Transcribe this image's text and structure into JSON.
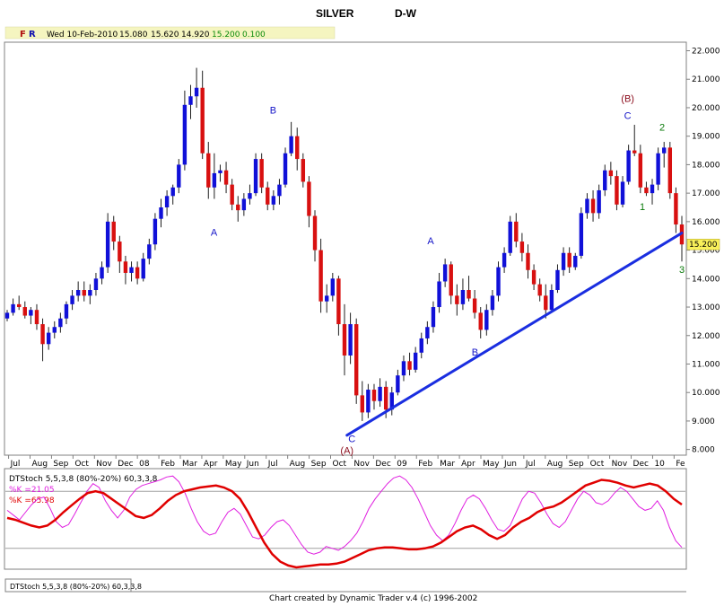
{
  "title": "SILVER",
  "timeframe": "D-W",
  "info_bar": {
    "fr": [
      "F",
      "R"
    ],
    "date": "Wed 10-Feb-2010",
    "open": "15.080",
    "high": "15.620",
    "low": "14.920",
    "close": "15.200",
    "change": "0.100"
  },
  "price_label": "15.200",
  "footer": "Chart created by Dynamic Trader v.4 (c) 1996-2002",
  "bottom_tab": "DTStoch 5,5,3,8 (80%-20%) 60,3,3,8",
  "colors": {
    "up": "#1010d8",
    "down": "#d81010",
    "trend": "#1a2ee0",
    "fast_k": "#e020e0",
    "slow_k": "#e00000"
  },
  "chart_data": [
    {
      "type": "candlestick",
      "title": "SILVER",
      "subtitle": "D-W",
      "x_ticks": [
        "Jul",
        "Aug",
        "Sep",
        "Oct",
        "Nov",
        "Dec",
        "08",
        "Feb",
        "Mar",
        "Apr",
        "May",
        "Jun",
        "Jul",
        "Aug",
        "Sep",
        "Oct",
        "Nov",
        "Dec",
        "09",
        "Feb",
        "Mar",
        "Apr",
        "May",
        "Jun",
        "Jul",
        "Aug",
        "Sep",
        "Oct",
        "Nov",
        "Dec",
        "10",
        "Fe"
      ],
      "y_ticks": [
        "8.000",
        "9.000",
        "10.000",
        "11.000",
        "12.000",
        "13.000",
        "14.000",
        "15.000",
        "16.000",
        "17.000",
        "18.000",
        "19.000",
        "20.000",
        "21.000",
        "22.000"
      ],
      "ylim": [
        7.8,
        22.3
      ],
      "period_weeks": [
        "2007-06-29",
        "2010-02-12"
      ],
      "candles": [
        [
          12.6,
          12.9,
          12.5,
          12.8
        ],
        [
          12.8,
          13.3,
          12.7,
          13.1
        ],
        [
          13.1,
          13.4,
          12.9,
          13.0
        ],
        [
          13.0,
          13.2,
          12.6,
          12.7
        ],
        [
          12.7,
          13.0,
          12.4,
          12.9
        ],
        [
          12.9,
          13.1,
          12.2,
          12.4
        ],
        [
          12.4,
          12.6,
          11.1,
          11.7
        ],
        [
          11.7,
          12.3,
          11.5,
          12.1
        ],
        [
          12.1,
          12.5,
          11.9,
          12.3
        ],
        [
          12.3,
          12.8,
          12.1,
          12.6
        ],
        [
          12.6,
          13.2,
          12.4,
          13.1
        ],
        [
          13.1,
          13.6,
          12.9,
          13.4
        ],
        [
          13.4,
          13.9,
          13.2,
          13.6
        ],
        [
          13.6,
          13.9,
          13.2,
          13.4
        ],
        [
          13.4,
          13.8,
          13.1,
          13.6
        ],
        [
          13.6,
          14.2,
          13.4,
          14.0
        ],
        [
          14.0,
          14.6,
          13.8,
          14.4
        ],
        [
          14.4,
          16.3,
          14.2,
          16.0
        ],
        [
          16.0,
          16.2,
          15.0,
          15.3
        ],
        [
          15.3,
          15.5,
          14.2,
          14.6
        ],
        [
          14.6,
          14.8,
          13.8,
          14.2
        ],
        [
          14.2,
          14.6,
          13.9,
          14.4
        ],
        [
          14.4,
          14.6,
          13.8,
          14.0
        ],
        [
          14.0,
          14.9,
          13.9,
          14.7
        ],
        [
          14.7,
          15.4,
          14.5,
          15.2
        ],
        [
          15.2,
          16.3,
          15.0,
          16.1
        ],
        [
          16.1,
          16.8,
          15.8,
          16.5
        ],
        [
          16.5,
          17.1,
          16.2,
          16.9
        ],
        [
          16.9,
          17.3,
          16.6,
          17.2
        ],
        [
          17.2,
          18.2,
          17.0,
          18.0
        ],
        [
          18.0,
          20.6,
          17.8,
          20.1
        ],
        [
          20.1,
          20.8,
          19.6,
          20.4
        ],
        [
          20.4,
          21.4,
          20.0,
          20.7
        ],
        [
          20.7,
          21.3,
          18.2,
          18.4
        ],
        [
          18.4,
          18.8,
          16.8,
          17.2
        ],
        [
          17.2,
          18.4,
          16.8,
          17.7
        ],
        [
          17.7,
          18.0,
          17.4,
          17.8
        ],
        [
          17.8,
          18.1,
          17.0,
          17.3
        ],
        [
          17.3,
          17.5,
          16.4,
          16.6
        ],
        [
          16.6,
          16.9,
          16.0,
          16.4
        ],
        [
          16.4,
          17.0,
          16.2,
          16.8
        ],
        [
          16.8,
          17.3,
          16.6,
          17.0
        ],
        [
          17.0,
          18.4,
          16.9,
          18.2
        ],
        [
          18.2,
          18.4,
          17.0,
          17.2
        ],
        [
          17.2,
          17.4,
          16.4,
          16.6
        ],
        [
          16.6,
          17.1,
          16.4,
          16.9
        ],
        [
          16.9,
          17.5,
          16.6,
          17.3
        ],
        [
          17.3,
          18.6,
          17.2,
          18.4
        ],
        [
          18.4,
          19.5,
          18.3,
          19.0
        ],
        [
          19.0,
          19.3,
          17.8,
          18.2
        ],
        [
          18.2,
          18.4,
          17.2,
          17.4
        ],
        [
          17.4,
          17.6,
          15.8,
          16.2
        ],
        [
          16.2,
          16.4,
          14.6,
          15.0
        ],
        [
          15.0,
          15.4,
          12.8,
          13.2
        ],
        [
          13.2,
          13.8,
          12.8,
          13.4
        ],
        [
          13.4,
          14.2,
          13.2,
          14.0
        ],
        [
          14.0,
          14.1,
          12.0,
          12.4
        ],
        [
          12.4,
          13.1,
          10.6,
          11.3
        ],
        [
          11.3,
          12.8,
          11.0,
          12.4
        ],
        [
          12.4,
          12.6,
          9.6,
          9.9
        ],
        [
          9.9,
          10.4,
          9.0,
          9.3
        ],
        [
          9.3,
          10.3,
          9.1,
          10.1
        ],
        [
          10.1,
          10.3,
          9.4,
          9.7
        ],
        [
          9.7,
          10.5,
          9.5,
          10.2
        ],
        [
          10.2,
          10.4,
          9.1,
          9.4
        ],
        [
          9.4,
          10.2,
          9.2,
          10.0
        ],
        [
          10.0,
          10.8,
          9.9,
          10.6
        ],
        [
          10.6,
          11.3,
          10.4,
          11.1
        ],
        [
          11.1,
          11.4,
          10.6,
          10.8
        ],
        [
          10.8,
          11.6,
          10.7,
          11.4
        ],
        [
          11.4,
          12.1,
          11.2,
          11.9
        ],
        [
          11.9,
          12.5,
          11.7,
          12.3
        ],
        [
          12.3,
          13.2,
          12.1,
          13.0
        ],
        [
          13.0,
          14.2,
          12.8,
          13.9
        ],
        [
          13.9,
          14.7,
          13.7,
          14.5
        ],
        [
          14.5,
          14.6,
          13.1,
          13.4
        ],
        [
          13.4,
          13.8,
          12.7,
          13.1
        ],
        [
          13.1,
          14.0,
          12.9,
          13.6
        ],
        [
          13.6,
          14.1,
          13.2,
          13.3
        ],
        [
          13.3,
          13.6,
          12.6,
          12.8
        ],
        [
          12.8,
          13.0,
          11.9,
          12.2
        ],
        [
          12.2,
          13.1,
          12.0,
          12.9
        ],
        [
          12.9,
          13.6,
          12.7,
          13.4
        ],
        [
          13.4,
          14.6,
          13.2,
          14.4
        ],
        [
          14.4,
          15.1,
          14.2,
          14.9
        ],
        [
          14.9,
          16.2,
          14.8,
          16.0
        ],
        [
          16.0,
          16.3,
          15.1,
          15.3
        ],
        [
          15.3,
          15.6,
          14.6,
          14.9
        ],
        [
          14.9,
          15.2,
          14.0,
          14.3
        ],
        [
          14.3,
          14.5,
          13.6,
          13.8
        ],
        [
          13.8,
          14.0,
          13.2,
          13.4
        ],
        [
          13.4,
          13.8,
          12.6,
          12.9
        ],
        [
          12.9,
          13.8,
          12.8,
          13.6
        ],
        [
          13.6,
          14.5,
          13.5,
          14.3
        ],
        [
          14.3,
          15.1,
          14.1,
          14.9
        ],
        [
          14.9,
          15.1,
          14.2,
          14.4
        ],
        [
          14.4,
          14.9,
          14.3,
          14.8
        ],
        [
          14.8,
          16.5,
          14.7,
          16.3
        ],
        [
          16.3,
          17.0,
          16.1,
          16.8
        ],
        [
          16.8,
          17.1,
          16.0,
          16.3
        ],
        [
          16.3,
          17.3,
          16.1,
          17.1
        ],
        [
          17.1,
          18.0,
          16.9,
          17.8
        ],
        [
          17.8,
          18.1,
          17.3,
          17.6
        ],
        [
          17.6,
          17.8,
          16.4,
          16.6
        ],
        [
          16.6,
          17.6,
          16.5,
          17.4
        ],
        [
          17.4,
          18.7,
          17.3,
          18.5
        ],
        [
          18.5,
          19.4,
          18.3,
          18.4
        ],
        [
          18.4,
          18.7,
          17.0,
          17.2
        ],
        [
          17.2,
          17.4,
          16.9,
          17.0
        ],
        [
          17.0,
          17.5,
          16.6,
          17.3
        ],
        [
          17.3,
          18.6,
          17.1,
          18.4
        ],
        [
          18.4,
          18.8,
          17.9,
          18.6
        ],
        [
          18.6,
          18.8,
          16.8,
          17.0
        ],
        [
          17.0,
          17.2,
          15.6,
          15.9
        ],
        [
          15.9,
          16.2,
          14.6,
          15.2
        ]
      ],
      "trendline": {
        "start": [
          "2008-10-24",
          8.5
        ],
        "end": [
          "2010-02-12",
          15.6
        ]
      },
      "wave_labels": [
        {
          "text": "A",
          "date": "2008-04-18",
          "price": 15.5,
          "color": "#1515c8"
        },
        {
          "text": "B",
          "date": "2008-07-11",
          "price": 19.8,
          "color": "#1515c8"
        },
        {
          "text": "C",
          "date": "2008-10-31",
          "price": 8.25,
          "color": "#1515c8"
        },
        {
          "text": "(A)",
          "date": "2008-10-24",
          "price": 7.85,
          "color": "#8a0a1a"
        },
        {
          "text": "A",
          "date": "2009-02-20",
          "price": 15.2,
          "color": "#1515c8"
        },
        {
          "text": "B",
          "date": "2009-04-24",
          "price": 11.3,
          "color": "#1515c8"
        },
        {
          "text": "C",
          "date": "2009-11-27",
          "price": 19.6,
          "color": "#1515c8"
        },
        {
          "text": "(B)",
          "date": "2009-11-27",
          "price": 20.2,
          "color": "#8a0a1a"
        },
        {
          "text": "1",
          "date": "2009-12-18",
          "price": 16.4,
          "color": "#0a7a0a"
        },
        {
          "text": "2",
          "date": "2010-01-15",
          "price": 19.2,
          "color": "#0a7a0a"
        },
        {
          "text": "3",
          "date": "2010-02-12",
          "price": 14.2,
          "color": "#0a7a0a"
        }
      ]
    },
    {
      "type": "line",
      "title": "DTStoch 5,5,3,8 (80%-20%) 60,3,3,8",
      "ylim": [
        0,
        100
      ],
      "levels": [
        80,
        20
      ],
      "series": [
        {
          "name": "%K =21.05",
          "color": "#e020e0",
          "values": [
            60,
            55,
            50,
            58,
            66,
            72,
            74,
            62,
            48,
            42,
            45,
            56,
            68,
            80,
            88,
            84,
            70,
            60,
            52,
            60,
            74,
            82,
            86,
            88,
            90,
            92,
            95,
            96,
            90,
            78,
            62,
            48,
            38,
            34,
            36,
            48,
            58,
            62,
            56,
            44,
            32,
            30,
            34,
            42,
            48,
            50,
            44,
            34,
            24,
            16,
            14,
            16,
            22,
            20,
            18,
            22,
            28,
            36,
            48,
            62,
            72,
            80,
            88,
            94,
            96,
            92,
            84,
            72,
            58,
            44,
            34,
            28,
            34,
            46,
            60,
            72,
            76,
            72,
            62,
            50,
            40,
            38,
            44,
            58,
            72,
            80,
            78,
            68,
            56,
            46,
            42,
            48,
            60,
            72,
            80,
            76,
            68,
            66,
            70,
            78,
            84,
            80,
            72,
            64,
            60,
            62,
            70,
            60,
            42,
            28,
            21
          ]
        },
        {
          "name": "%K =65.98",
          "color": "#e00000",
          "values": [
            52,
            50,
            47,
            44,
            42,
            44,
            50,
            58,
            65,
            72,
            78,
            80,
            78,
            72,
            66,
            60,
            54,
            52,
            55,
            62,
            70,
            76,
            80,
            82,
            84,
            85,
            86,
            84,
            80,
            72,
            58,
            42,
            26,
            14,
            6,
            2,
            0,
            1,
            2,
            3,
            3,
            4,
            6,
            10,
            14,
            18,
            20,
            21,
            21,
            20,
            19,
            19,
            20,
            22,
            26,
            32,
            38,
            42,
            44,
            40,
            34,
            30,
            34,
            42,
            48,
            52,
            58,
            62,
            64,
            68,
            74,
            80,
            86,
            89,
            92,
            91,
            89,
            86,
            84,
            86,
            88,
            86,
            80,
            72,
            66
          ]
        }
      ]
    }
  ]
}
